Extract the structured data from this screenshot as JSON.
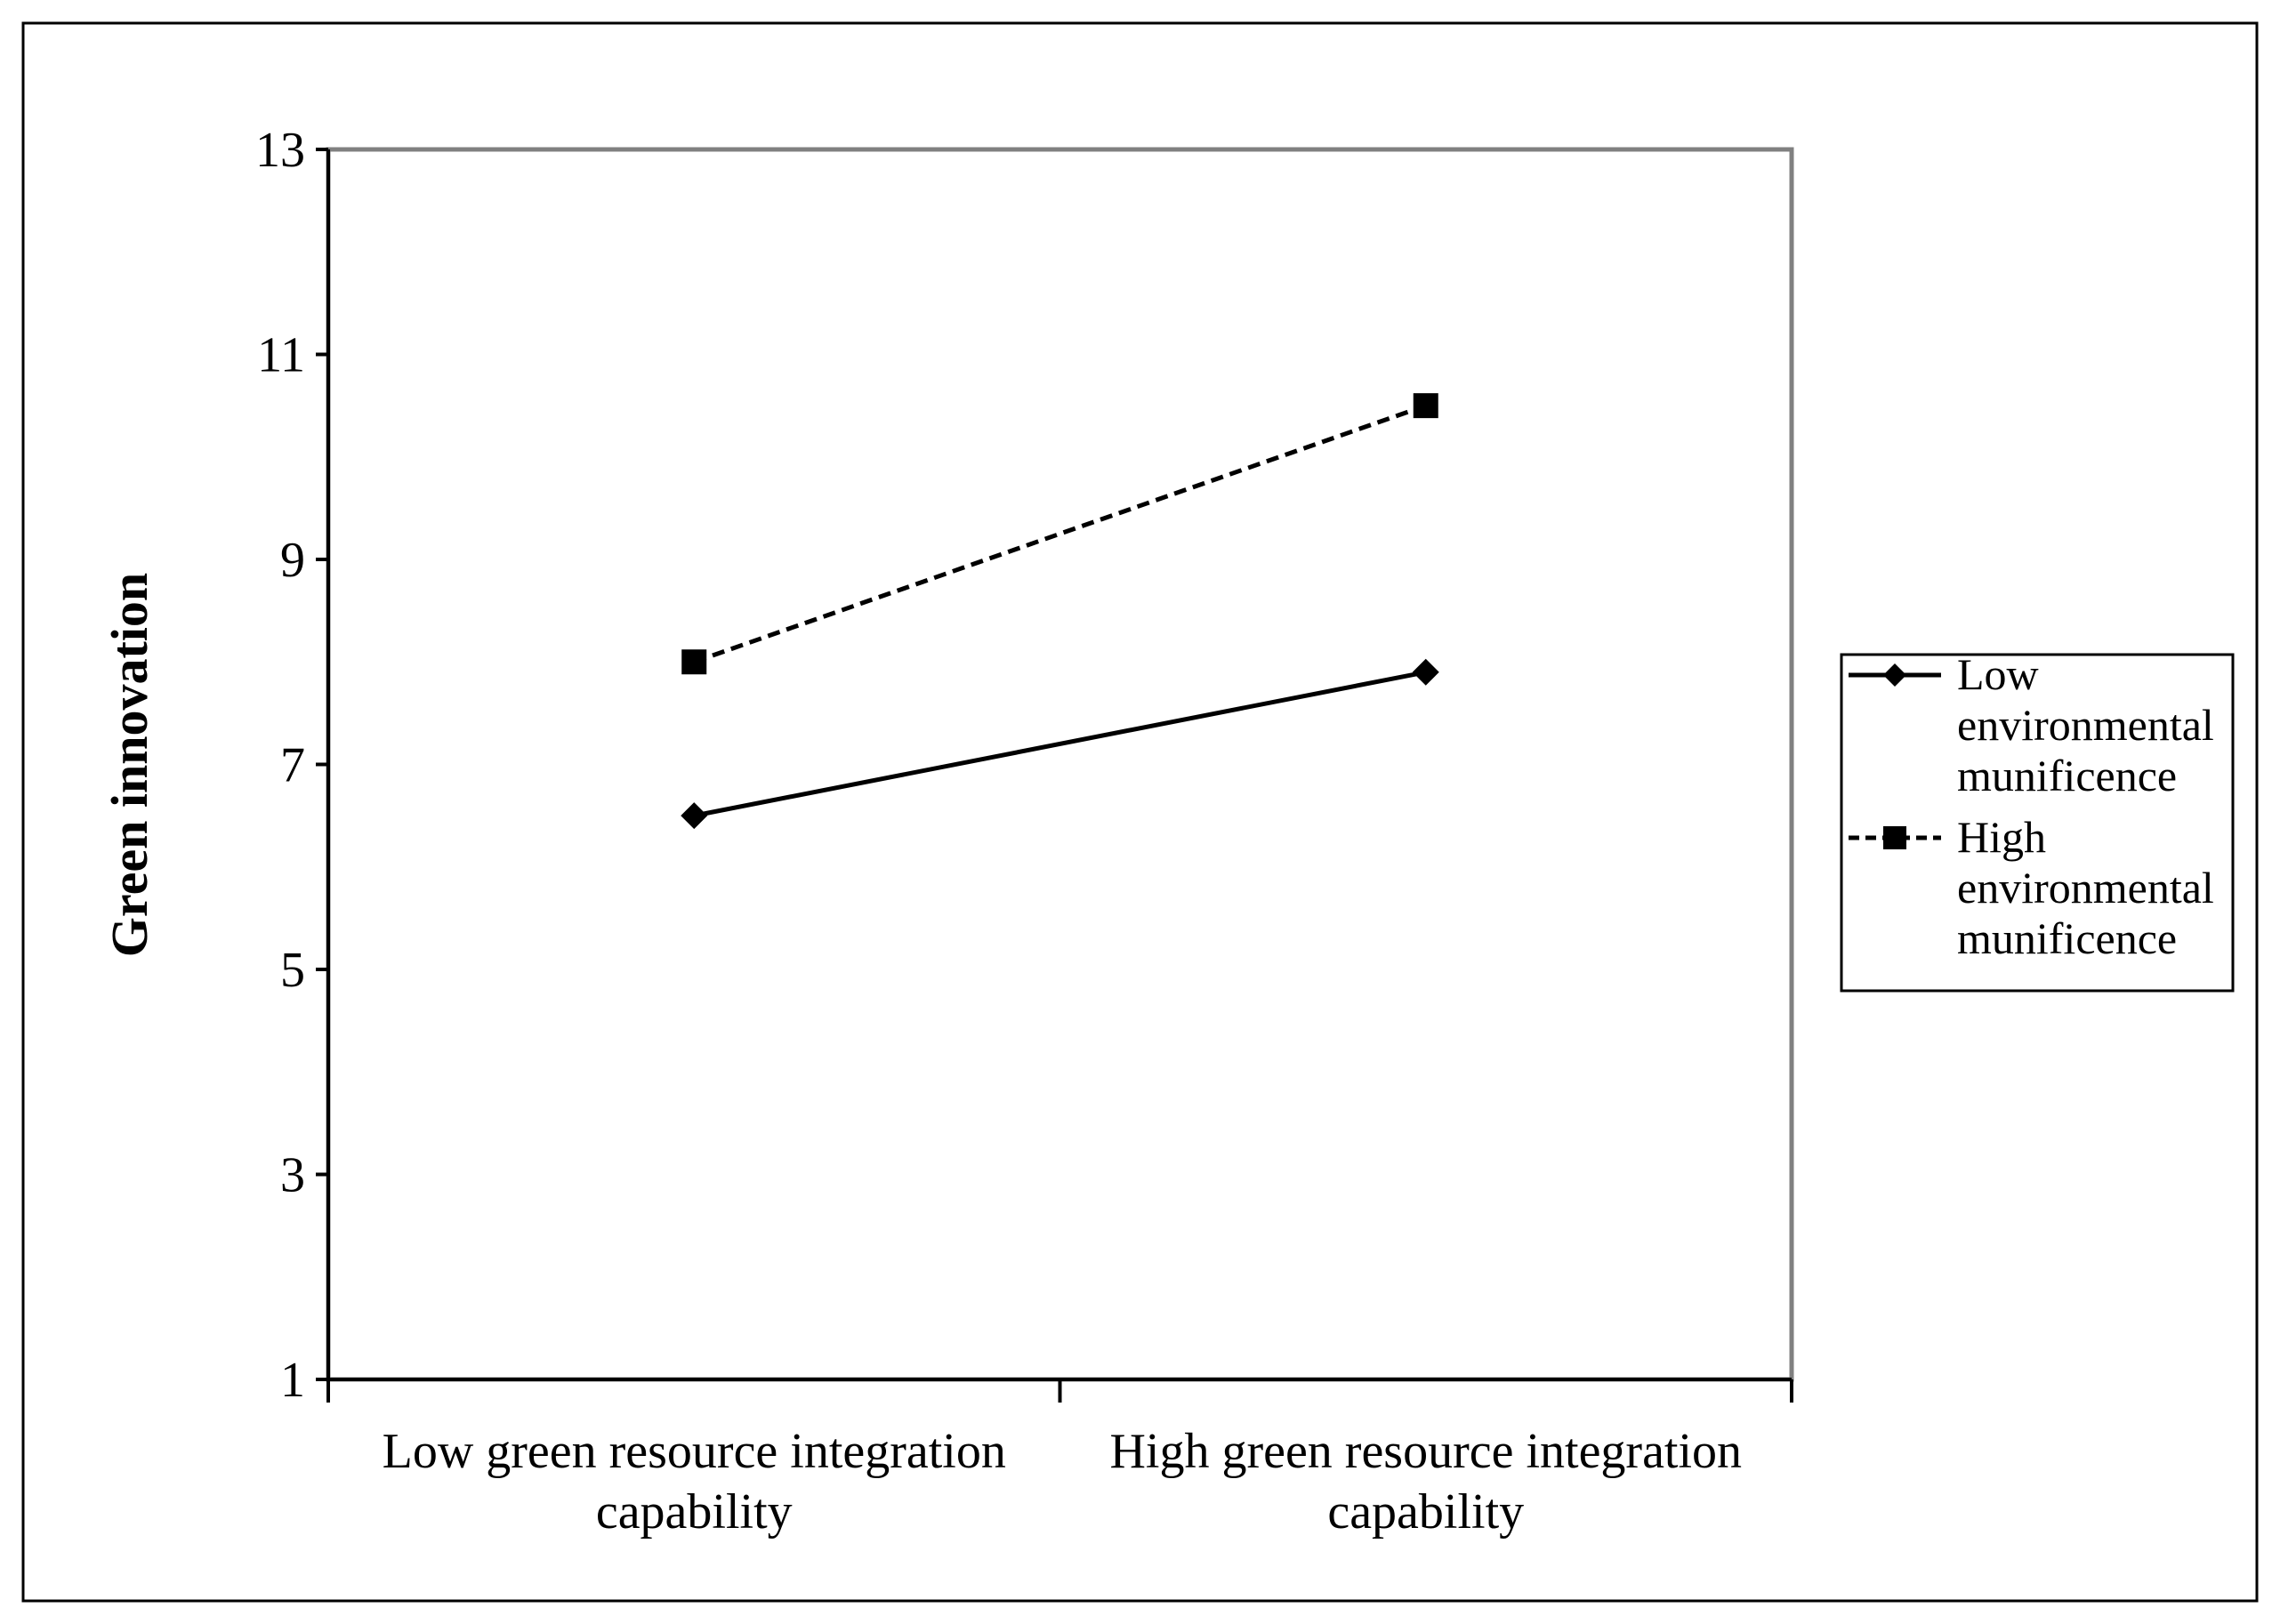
{
  "chart_data": {
    "type": "line",
    "title": "",
    "ylabel": "Green innovation",
    "xlabel": "",
    "categories": [
      "Low green resource integration capability",
      "High green resource integration capability"
    ],
    "category_lines": [
      [
        "Low green resource integration",
        "capability"
      ],
      [
        "High green resource integration",
        "capability"
      ]
    ],
    "ylim": [
      1,
      13
    ],
    "yticks": [
      1,
      3,
      5,
      7,
      9,
      11,
      13
    ],
    "grid": false,
    "legend_position": "right",
    "series": [
      {
        "name": "Low environmental munificence",
        "name_lines": [
          "Low",
          "environmental",
          "munificence"
        ],
        "values": [
          6.5,
          7.9
        ],
        "line_style": "solid",
        "marker": "diamond",
        "color": "#000000"
      },
      {
        "name": "High environmental munificence",
        "name_lines": [
          "High",
          "environmental",
          "munificence"
        ],
        "values": [
          8.0,
          10.5
        ],
        "line_style": "dashed",
        "marker": "square",
        "color": "#000000"
      }
    ]
  }
}
